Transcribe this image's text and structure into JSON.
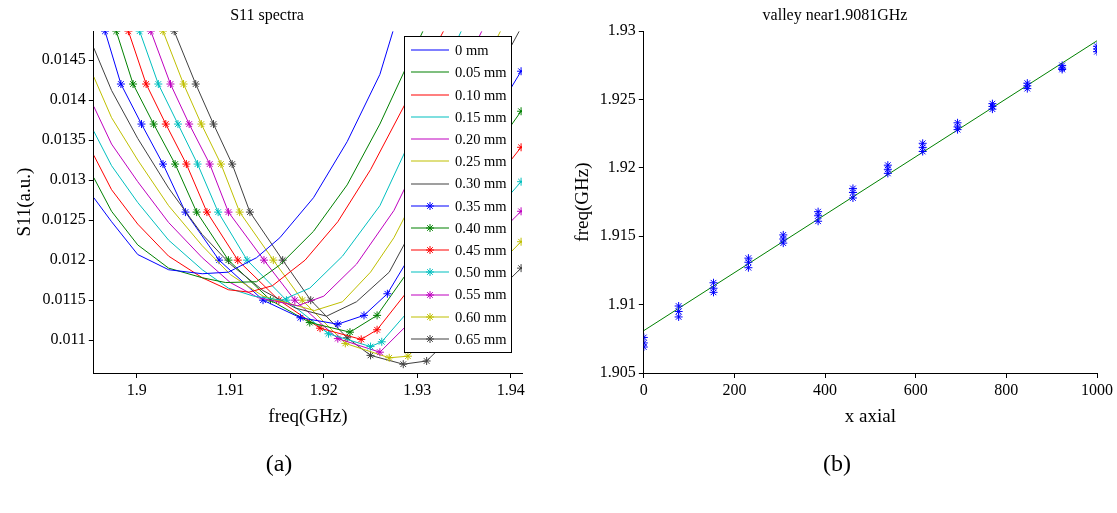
{
  "chart_data": [
    {
      "type": "line",
      "title": "S11 spectra",
      "xlabel": "freq(GHz)",
      "ylabel": "S11(a.u.)",
      "xlim": [
        1.8954,
        1.9412
      ],
      "xticks": [
        1.9,
        1.91,
        1.92,
        1.93,
        1.94
      ],
      "ylim": [
        0.01059,
        0.01486
      ],
      "yticks": [
        0.011,
        0.0115,
        0.012,
        0.0125,
        0.013,
        0.0135,
        0.014,
        0.0145
      ],
      "grid": false,
      "legend": "top right",
      "annotations": [
        "(a)"
      ],
      "series": [
        {
          "name": "0 mm",
          "color": "#0000ff",
          "marker": "none",
          "x": [
            1.8954,
            1.8973,
            1.9001,
            1.9034,
            1.907,
            1.9098,
            1.9128,
            1.9153,
            1.9189,
            1.9225,
            1.926,
            1.9274
          ],
          "values": [
            0.01278,
            0.01248,
            0.01207,
            0.01188,
            0.01183,
            0.01185,
            0.01203,
            0.01228,
            0.01278,
            0.01348,
            0.01432,
            0.01486
          ]
        },
        {
          "name": "0.05 mm",
          "color": "#008000",
          "marker": "none",
          "x": [
            1.8954,
            1.8973,
            1.9001,
            1.9034,
            1.907,
            1.9095,
            1.9128,
            1.9153,
            1.9189,
            1.9225,
            1.926,
            1.9306
          ],
          "values": [
            0.01303,
            0.01261,
            0.01219,
            0.0119,
            0.01178,
            0.01172,
            0.01173,
            0.01194,
            0.01236,
            0.01294,
            0.0137,
            0.01486
          ]
        },
        {
          "name": "0.10 mm",
          "color": "#ff0000",
          "marker": "none",
          "x": [
            1.8954,
            1.8973,
            1.9001,
            1.9034,
            1.907,
            1.9098,
            1.912,
            1.9145,
            1.918,
            1.9215,
            1.925,
            1.9328
          ],
          "values": [
            0.01331,
            0.01288,
            0.01245,
            0.01205,
            0.01178,
            0.01163,
            0.0116,
            0.01168,
            0.012,
            0.01248,
            0.01313,
            0.01486
          ]
        },
        {
          "name": "0.15 mm",
          "color": "#00bfbf",
          "marker": "none",
          "x": [
            1.8954,
            1.8973,
            1.9001,
            1.9034,
            1.907,
            1.9098,
            1.9125,
            1.9155,
            1.9185,
            1.922,
            1.926,
            1.9347
          ],
          "values": [
            0.01361,
            0.01318,
            0.01272,
            0.01225,
            0.01188,
            0.01165,
            0.01155,
            0.0115,
            0.01165,
            0.01205,
            0.01268,
            0.01486
          ]
        },
        {
          "name": "0.20 mm",
          "color": "#bf00bf",
          "marker": "none",
          "x": [
            1.8954,
            1.8973,
            1.9001,
            1.9034,
            1.907,
            1.91,
            1.913,
            1.9172,
            1.92,
            1.9235,
            1.9275,
            1.9369
          ],
          "values": [
            0.01392,
            0.01345,
            0.01298,
            0.01247,
            0.01203,
            0.01172,
            0.01153,
            0.01143,
            0.01155,
            0.01195,
            0.01262,
            0.01486
          ]
        },
        {
          "name": "0.25 mm",
          "color": "#bfbf00",
          "marker": "none",
          "x": [
            1.8954,
            1.8973,
            1.9001,
            1.9034,
            1.907,
            1.91,
            1.9135,
            1.919,
            1.922,
            1.925,
            1.9275,
            1.9389
          ],
          "values": [
            0.01429,
            0.01378,
            0.01325,
            0.01268,
            0.01218,
            0.01182,
            0.01155,
            0.01137,
            0.01148,
            0.01185,
            0.01228,
            0.01486
          ]
        },
        {
          "name": "0.30 mm",
          "color": "#404040",
          "marker": "none",
          "x": [
            1.8954,
            1.8973,
            1.9001,
            1.9034,
            1.907,
            1.91,
            1.9135,
            1.917,
            1.9203,
            1.9235,
            1.927,
            1.9409
          ],
          "values": [
            0.01465,
            0.01412,
            0.01352,
            0.0129,
            0.01232,
            0.01195,
            0.01162,
            0.0114,
            0.0113,
            0.01148,
            0.01185,
            0.01486
          ]
        },
        {
          "name": "0.35 mm",
          "color": "#0000ff",
          "marker": "cross",
          "x": [
            1.8966,
            1.8983,
            1.9005,
            1.9028,
            1.9052,
            1.9088,
            1.9135,
            1.9175,
            1.9215,
            1.9243,
            1.9268,
            1.9411
          ],
          "values": [
            0.01486,
            0.0142,
            0.0137,
            0.0132,
            0.0126,
            0.012,
            0.0115,
            0.01128,
            0.0112,
            0.01131,
            0.01158,
            0.01436
          ]
        },
        {
          "name": "0.40 mm",
          "color": "#008000",
          "marker": "cross",
          "x": [
            1.8978,
            1.8996,
            1.9018,
            1.9041,
            1.9064,
            1.9098,
            1.9143,
            1.9185,
            1.9228,
            1.9257,
            1.9411
          ],
          "values": [
            0.01486,
            0.0142,
            0.0137,
            0.0132,
            0.0126,
            0.012,
            0.0115,
            0.01122,
            0.0111,
            0.01131,
            0.01386
          ]
        },
        {
          "name": "0.45 mm",
          "color": "#ff0000",
          "marker": "cross",
          "x": [
            1.8991,
            1.901,
            1.9031,
            1.9053,
            1.9075,
            1.9108,
            1.9152,
            1.9196,
            1.924,
            1.9257,
            1.9411
          ],
          "values": [
            0.01486,
            0.0142,
            0.0137,
            0.0132,
            0.0126,
            0.012,
            0.0115,
            0.01115,
            0.01101,
            0.01113,
            0.01341
          ]
        },
        {
          "name": "0.50 mm",
          "color": "#00bfbf",
          "marker": "cross",
          "x": [
            1.9003,
            1.9023,
            1.9044,
            1.9065,
            1.9087,
            1.9118,
            1.916,
            1.9205,
            1.925,
            1.9262,
            1.9411
          ],
          "values": [
            0.01486,
            0.0142,
            0.0137,
            0.0132,
            0.0126,
            0.012,
            0.0115,
            0.01108,
            0.01092,
            0.01098,
            0.01298
          ]
        },
        {
          "name": "0.55 mm",
          "color": "#bf00bf",
          "marker": "cross",
          "x": [
            1.9015,
            1.9036,
            1.9056,
            1.9078,
            1.9098,
            1.9136,
            1.9169,
            1.9215,
            1.926,
            1.9411
          ],
          "values": [
            0.01486,
            0.0142,
            0.0137,
            0.0132,
            0.0126,
            0.012,
            0.0115,
            0.01102,
            0.01085,
            0.01261
          ]
        },
        {
          "name": "0.60 mm",
          "color": "#bfbf00",
          "marker": "cross",
          "x": [
            1.9028,
            1.905,
            1.9069,
            1.909,
            1.911,
            1.9146,
            1.9177,
            1.9223,
            1.927,
            1.929,
            1.9411
          ],
          "values": [
            0.01486,
            0.0142,
            0.0137,
            0.0132,
            0.0126,
            0.012,
            0.0115,
            0.01096,
            0.01078,
            0.0108,
            0.01223
          ]
        },
        {
          "name": "0.65 mm",
          "color": "#404040",
          "marker": "cross",
          "x": [
            1.904,
            1.9063,
            1.9082,
            1.9102,
            1.9121,
            1.9156,
            1.9186,
            1.9225,
            1.925,
            1.9285,
            1.931,
            1.9411
          ],
          "values": [
            0.01486,
            0.0142,
            0.0137,
            0.0132,
            0.0126,
            0.012,
            0.0115,
            0.01103,
            0.01081,
            0.0107,
            0.01074,
            0.0119
          ]
        }
      ]
    },
    {
      "type": "scatter",
      "title": "valley near1.9081GHz",
      "xlabel": "x axial",
      "ylabel": "freq(GHz)",
      "xlim": [
        0,
        1000
      ],
      "xticks": [
        0,
        200,
        400,
        600,
        800,
        1000
      ],
      "ylim": [
        1.905,
        1.93
      ],
      "yticks": [
        1.905,
        1.91,
        1.915,
        1.92,
        1.925,
        1.93
      ],
      "grid": false,
      "annotations": [
        "(b)"
      ],
      "series": [
        {
          "color": "#0000ff",
          "marker": "cross",
          "x": [
            0,
            0,
            0,
            76.9,
            76.9,
            76.9,
            153.8,
            153.8,
            153.8,
            230.8,
            230.8,
            230.8,
            307.7,
            307.7,
            307.7,
            384.6,
            384.6,
            384.6,
            461.5,
            461.5,
            461.5,
            538.5,
            538.5,
            538.5,
            615.4,
            615.4,
            615.4,
            692.3,
            692.3,
            692.3,
            769.2,
            769.2,
            769.2,
            846.2,
            846.2,
            846.2,
            923.1,
            923.1,
            923.1,
            1000,
            1000,
            1000
          ],
          "values": [
            1.9076,
            1.9072,
            1.9069,
            1.9099,
            1.9095,
            1.9091,
            1.9116,
            1.9112,
            1.9109,
            1.9134,
            1.9131,
            1.9127,
            1.9151,
            1.9148,
            1.9145,
            1.9168,
            1.9165,
            1.9161,
            1.9185,
            1.9182,
            1.9178,
            1.9202,
            1.9199,
            1.9196,
            1.9218,
            1.9215,
            1.9212,
            1.9233,
            1.923,
            1.9228,
            1.9247,
            1.9245,
            1.9243,
            1.9262,
            1.926,
            1.9258,
            1.9275,
            1.9273,
            1.9272,
            1.9289,
            1.9287,
            1.9285
          ]
        },
        {
          "type": "line",
          "color": "#008000",
          "marker": "none",
          "x": [
            0,
            1000
          ],
          "values": [
            1.9081,
            1.9293
          ]
        }
      ]
    }
  ]
}
